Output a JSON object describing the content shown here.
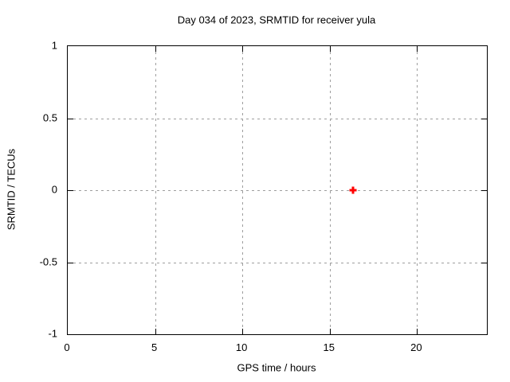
{
  "page": {
    "background": "#ffffff"
  },
  "chart_data": {
    "type": "scatter",
    "title": "Day 034 of 2023, SRMTID for receiver yula",
    "xlabel": "GPS time / hours",
    "ylabel": "SRMTID / TECUs",
    "xlim": [
      0,
      24
    ],
    "ylim": [
      -1,
      1
    ],
    "xticks": [
      {
        "value": 0,
        "label": "0"
      },
      {
        "value": 5,
        "label": "5"
      },
      {
        "value": 10,
        "label": "10"
      },
      {
        "value": 15,
        "label": "15"
      },
      {
        "value": 20,
        "label": "20"
      }
    ],
    "yticks": [
      {
        "value": 1,
        "label": "1"
      },
      {
        "value": 0.5,
        "label": "0.5"
      },
      {
        "value": 0,
        "label": "0"
      },
      {
        "value": -0.5,
        "label": "-0.5"
      },
      {
        "value": -1,
        "label": "-1"
      }
    ],
    "grid": "dashed",
    "legend": "none",
    "colors": {
      "border": "#000000",
      "grid": "#9e9e9e",
      "marker": "#ff0000"
    },
    "series": [
      {
        "name": "SRMTID",
        "marker": "plus",
        "color": "#ff0000",
        "points": [
          {
            "x": 16.33,
            "y": 0
          }
        ]
      }
    ]
  }
}
